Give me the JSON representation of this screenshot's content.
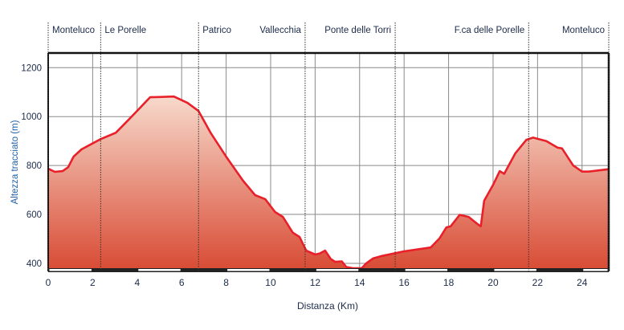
{
  "chart_data": {
    "type": "area",
    "title": "",
    "xlabel": "Distanza (Km)",
    "ylabel": "Altezza tracciato (m)",
    "xlim": [
      0,
      25.2
    ],
    "ylim": [
      367,
      1260
    ],
    "xticks": [
      0,
      2,
      4,
      6,
      8,
      10,
      12,
      14,
      16,
      18,
      20,
      22,
      24
    ],
    "yticks": [
      400,
      600,
      800,
      1000,
      1200
    ],
    "grid": true,
    "legend": "none",
    "colors": {
      "line": "#e8202a",
      "fill_top": "#f7d9cb",
      "fill_bottom": "#d84a33",
      "ylabel": "#1f5fa8",
      "ticks": "#1c2b4a"
    },
    "waypoints": [
      {
        "name": "Monteluco",
        "km": 0,
        "align": "left"
      },
      {
        "name": "Le Porelle",
        "km": 2.36,
        "align": "left"
      },
      {
        "name": "Patrico",
        "km": 6.76,
        "align": "left"
      },
      {
        "name": "Vallecchia",
        "km": 11.55,
        "align": "right"
      },
      {
        "name": "Ponte delle Torri",
        "km": 15.6,
        "align": "right"
      },
      {
        "name": "F.ca delle Porelle",
        "km": 21.6,
        "align": "right"
      },
      {
        "name": "Monteluco",
        "km": 25.2,
        "align": "right"
      }
    ],
    "series": [
      {
        "x": [
          0,
          0.3,
          0.65,
          0.9,
          1.14,
          1.5,
          2.36,
          3.04,
          3.58,
          4.1,
          4.58,
          5.0,
          5.65,
          6.26,
          6.76,
          7.3,
          8.0,
          8.76,
          9.3,
          9.76,
          10.2,
          10.55,
          11.0,
          11.3,
          11.6,
          12.0,
          12.2,
          12.45,
          12.7,
          12.9,
          13.2,
          13.4,
          13.7,
          14.1,
          14.3,
          14.6,
          15.0,
          16.0,
          17.2,
          17.6,
          17.9,
          18.1,
          18.5,
          18.9,
          19.35,
          19.45,
          19.6,
          20.0,
          20.3,
          20.5,
          21.0,
          21.5,
          21.8,
          22.4,
          22.9,
          23.1,
          23.6,
          24.0,
          24.3,
          25.2
        ],
        "y": [
          787,
          774,
          777,
          793,
          836,
          866,
          908,
          934,
          984,
          1033,
          1079,
          1080,
          1082,
          1056,
          1023,
          934,
          836,
          738,
          679,
          662,
          610,
          590,
          525,
          508,
          452,
          436,
          440,
          452,
          418,
          406,
          408,
          385,
          380,
          380,
          400,
          420,
          430,
          449,
          465,
          503,
          547,
          552,
          598,
          590,
          557,
          552,
          656,
          721,
          777,
          766,
          850,
          905,
          914,
          900,
          873,
          870,
          800,
          775,
          775,
          785
        ]
      }
    ]
  }
}
